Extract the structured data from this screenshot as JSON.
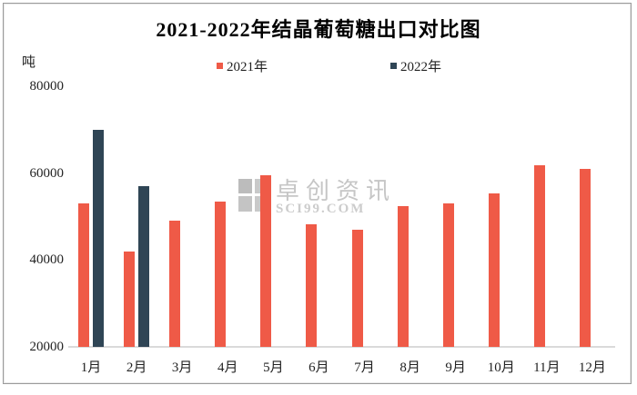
{
  "window": {
    "background": "#ffffff",
    "border_color": "#9b9b9b"
  },
  "chart_data": {
    "type": "bar",
    "title": "2021-2022年结晶葡萄糖出口对比图",
    "unit_label": "吨",
    "categories": [
      "1月",
      "2月",
      "3月",
      "4月",
      "5月",
      "6月",
      "7月",
      "8月",
      "9月",
      "10月",
      "11月",
      "12月"
    ],
    "series": [
      {
        "name": "2021年",
        "color": "#ef5a47",
        "values": [
          53000,
          42000,
          49000,
          53500,
          59500,
          48300,
          47000,
          52300,
          53000,
          55300,
          61800,
          61000
        ]
      },
      {
        "name": "2022年",
        "color": "#2f4555",
        "values": [
          70000,
          57000,
          null,
          null,
          null,
          null,
          null,
          null,
          null,
          null,
          null,
          null
        ]
      }
    ],
    "y_axis": {
      "min": 20000,
      "max": 80000,
      "ticks": [
        20000,
        40000,
        60000,
        80000
      ]
    },
    "grid": false,
    "legend_position": "top-center",
    "axis_line_color": "#dadada"
  },
  "watermark": {
    "line1": "卓创资讯",
    "line2": "SCI99.COM"
  }
}
